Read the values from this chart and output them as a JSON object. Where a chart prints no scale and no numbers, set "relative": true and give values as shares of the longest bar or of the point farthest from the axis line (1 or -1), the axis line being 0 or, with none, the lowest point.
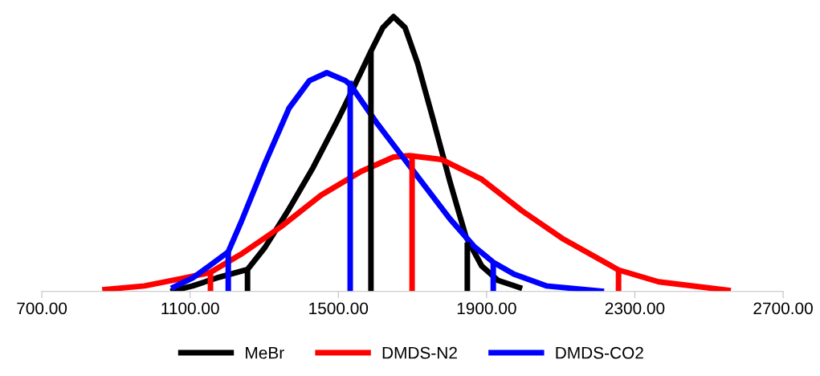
{
  "chart_data": {
    "type": "line",
    "relative": true,
    "legend": "bottom",
    "grid": false,
    "marker": "none",
    "line_style": "solid",
    "xlim": [
      700,
      2700
    ],
    "xticks": [
      {
        "value": 700,
        "label": "700.00"
      },
      {
        "value": 1100,
        "label": "1100.00"
      },
      {
        "value": 1500,
        "label": "1500.00"
      },
      {
        "value": 1900,
        "label": "1900.00"
      },
      {
        "value": 2300,
        "label": "2300.00"
      },
      {
        "value": 2700,
        "label": "2700.00"
      }
    ],
    "series": [
      {
        "name": "MeBr",
        "color": "#000000",
        "x": [
          1047,
          1107,
          1172,
          1255,
          1302,
          1367,
          1432,
          1497,
          1519,
          1562,
          1588,
          1620,
          1649,
          1680,
          1714,
          1757,
          1801,
          1844,
          1887,
          1931,
          1996
        ],
        "values": [
          0,
          0.02,
          0.049,
          0.08,
          0.16,
          0.3,
          0.451,
          0.62,
          0.68,
          0.8,
          0.874,
          0.96,
          1,
          0.96,
          0.83,
          0.62,
          0.4,
          0.2,
          0.092,
          0.04,
          0.011
        ]
      },
      {
        "name": "DMDS-N2",
        "color": "#ff0000",
        "x": [
          863,
          977,
          1086,
          1155,
          1237,
          1346,
          1454,
          1562,
          1649,
          1692,
          1779,
          1887,
          1996,
          2104,
          2256,
          2364,
          2559
        ],
        "values": [
          0.006,
          0.02,
          0.049,
          0.069,
          0.135,
          0.236,
          0.351,
          0.437,
          0.489,
          0.494,
          0.48,
          0.408,
          0.293,
          0.193,
          0.078,
          0.035,
          0.003
        ]
      },
      {
        "name": "DMDS-CO2",
        "color": "#0000ff",
        "x": [
          1049,
          1107,
          1151,
          1203,
          1237,
          1302,
          1367,
          1422,
          1469,
          1519,
          1532,
          1606,
          1671,
          1736,
          1801,
          1866,
          1918,
          1974,
          2061,
          2217
        ],
        "values": [
          0.011,
          0.049,
          0.092,
          0.144,
          0.25,
          0.466,
          0.667,
          0.767,
          0.796,
          0.767,
          0.753,
          0.609,
          0.494,
          0.379,
          0.264,
          0.164,
          0.106,
          0.063,
          0.02,
          0
        ]
      },
      {
        "color": "#000000",
        "x": [
          1255,
          1255
        ],
        "values": [
          0,
          0.08
        ]
      },
      {
        "color": "#000000",
        "x": [
          1588,
          1588
        ],
        "values": [
          0,
          0.874
        ]
      },
      {
        "color": "#000000",
        "x": [
          1848,
          1848
        ],
        "values": [
          0,
          0.178
        ]
      },
      {
        "color": "#ff0000",
        "x": [
          1155,
          1155
        ],
        "values": [
          0,
          0.069
        ]
      },
      {
        "color": "#ff0000",
        "x": [
          1699,
          1699
        ],
        "values": [
          0,
          0.494
        ]
      },
      {
        "color": "#ff0000",
        "x": [
          2256,
          2256
        ],
        "values": [
          0,
          0.078
        ]
      },
      {
        "color": "#0000ff",
        "x": [
          1203,
          1203
        ],
        "values": [
          0,
          0.144
        ]
      },
      {
        "color": "#0000ff",
        "x": [
          1532,
          1532
        ],
        "values": [
          0,
          0.767
        ]
      },
      {
        "color": "#0000ff",
        "x": [
          1918,
          1918
        ],
        "values": [
          0,
          0.106
        ]
      }
    ]
  }
}
